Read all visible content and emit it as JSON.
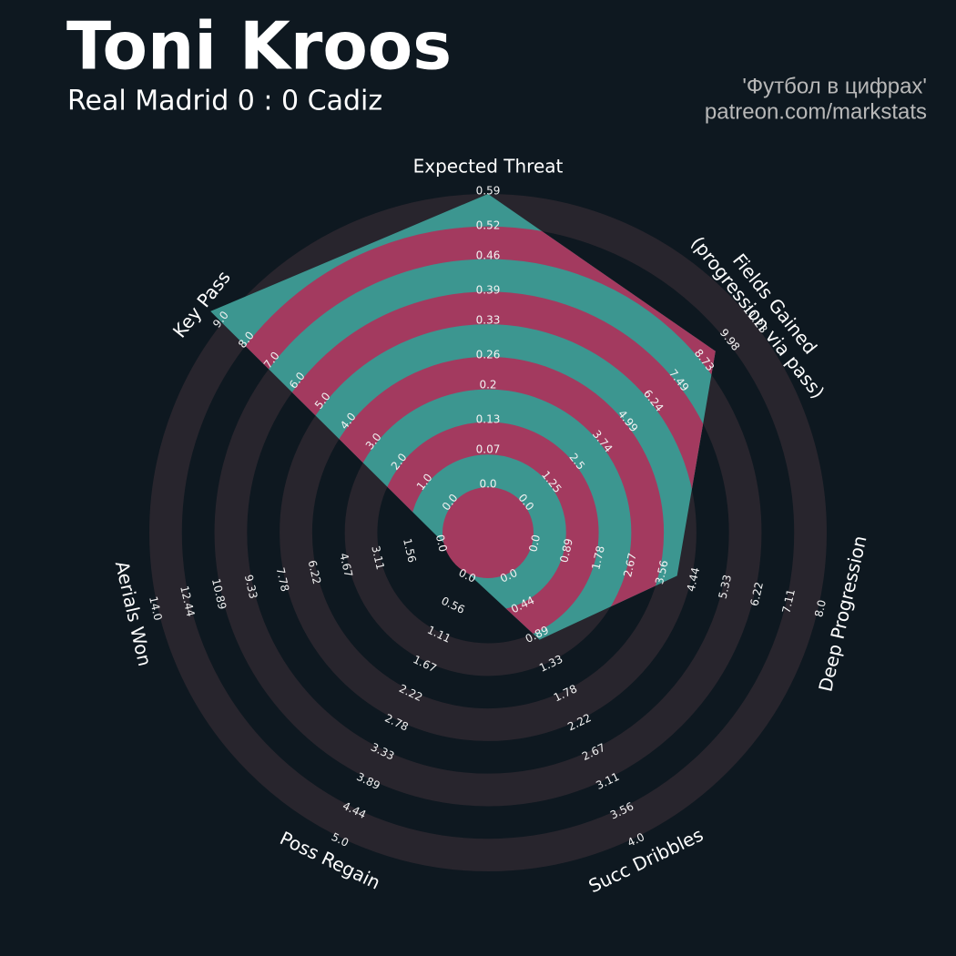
{
  "chart_data": {
    "type": "radar",
    "title": "Toni Kroos",
    "subtitle": "Real Madrid 0 : 0 Cadiz",
    "credits": [
      "'Футбол в цифрах'",
      "patreon.com/markstats"
    ],
    "colors": {
      "background": "#0e1820",
      "rings": "#28252d",
      "polygon": "#3c9690",
      "polygon_rings": "#a33a5f"
    },
    "params": [
      {
        "name": "Expected Threat",
        "lim": [
          0,
          0.59
        ],
        "ticks": [
          {
            "value": 0,
            "label": "0.0"
          },
          0.07,
          0.13,
          0.2,
          0.26,
          0.33,
          0.39,
          0.46,
          0.52,
          0.59
        ]
      },
      {
        "name": "Fields Gained\n(progression via pass)",
        "lim": [
          0,
          11.23
        ],
        "ticks": [
          {
            "value": 0,
            "label": "0.0"
          },
          1.25,
          2.5,
          3.74,
          4.99,
          6.24,
          7.49,
          8.73,
          9.98,
          11.23
        ]
      },
      {
        "name": "Deep Progression",
        "lim": [
          0,
          8
        ],
        "ticks": [
          {
            "value": 0,
            "label": "0.0"
          },
          0.89,
          1.78,
          2.67,
          3.56,
          4.44,
          5.33,
          6.22,
          7.11,
          {
            "value": 8,
            "label": "8.0"
          }
        ]
      },
      {
        "name": "Succ Dribbles",
        "lim": [
          0,
          4
        ],
        "ticks": [
          {
            "value": 0,
            "label": "0.0"
          },
          0.44,
          0.89,
          1.33,
          1.78,
          2.22,
          2.67,
          3.11,
          3.56,
          {
            "value": 4,
            "label": "4.0"
          }
        ]
      },
      {
        "name": "Poss Regain",
        "lim": [
          0,
          5
        ],
        "ticks": [
          {
            "value": 0,
            "label": "0.0"
          },
          0.56,
          1.11,
          1.67,
          2.22,
          2.78,
          3.33,
          3.89,
          4.44,
          {
            "value": 5,
            "label": "5.0"
          }
        ]
      },
      {
        "name": "Aerials Won",
        "lim": [
          0,
          14
        ],
        "ticks": [
          {
            "value": 0,
            "label": "0.0"
          },
          1.56,
          3.11,
          4.67,
          6.22,
          7.78,
          9.33,
          10.89,
          12.44,
          {
            "value": 14,
            "label": "14.0"
          }
        ]
      },
      {
        "name": "Key Pass",
        "lim": [
          0,
          9
        ],
        "ticks": [
          {
            "value": 0,
            "label": "0.0"
          },
          {
            "value": 1,
            "label": "1.0"
          },
          {
            "value": 2,
            "label": "2.0"
          },
          {
            "value": 3,
            "label": "3.0"
          },
          {
            "value": 4,
            "label": "4.0"
          },
          {
            "value": 5,
            "label": "5.0"
          },
          {
            "value": 6,
            "label": "6.0"
          },
          {
            "value": 7,
            "label": "7.0"
          },
          {
            "value": 8,
            "label": "8.0"
          },
          {
            "value": 9,
            "label": "9.0"
          }
        ]
      }
    ],
    "values": [
      0.59,
      9.4,
      4.05,
      1.0,
      0,
      0,
      9.5
    ]
  }
}
